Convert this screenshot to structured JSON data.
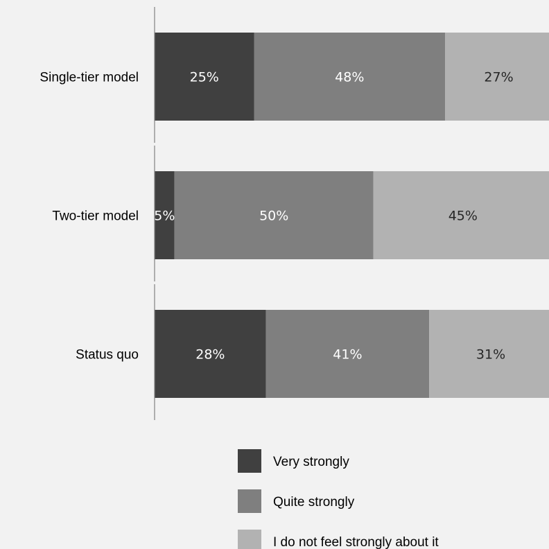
{
  "chart_data": {
    "type": "bar",
    "orientation": "horizontal",
    "stacked": true,
    "categories": [
      "Single-tier model",
      "Two-tier model",
      "Status quo"
    ],
    "series": [
      {
        "name": "Very strongly",
        "values": [
          25,
          5,
          28
        ],
        "labels": [
          "25%",
          "5%",
          "28%"
        ],
        "color": "#404040",
        "label_color": "#ffffff"
      },
      {
        "name": "Quite strongly",
        "values": [
          48,
          50,
          41
        ],
        "labels": [
          "48%",
          "50%",
          "41%"
        ],
        "color": "#7f7f7f",
        "label_color": "#ffffff"
      },
      {
        "name": "I do not feel strongly about it",
        "values": [
          27,
          45,
          31
        ],
        "labels": [
          "27%",
          "45%",
          "31%"
        ],
        "color": "#b2b2b2",
        "label_color": "#262626"
      }
    ],
    "xlim": [
      0,
      100
    ],
    "grid": false,
    "legend_position": "bottom"
  },
  "colors": {
    "background": "#f2f2f2",
    "axis": "#808080"
  }
}
